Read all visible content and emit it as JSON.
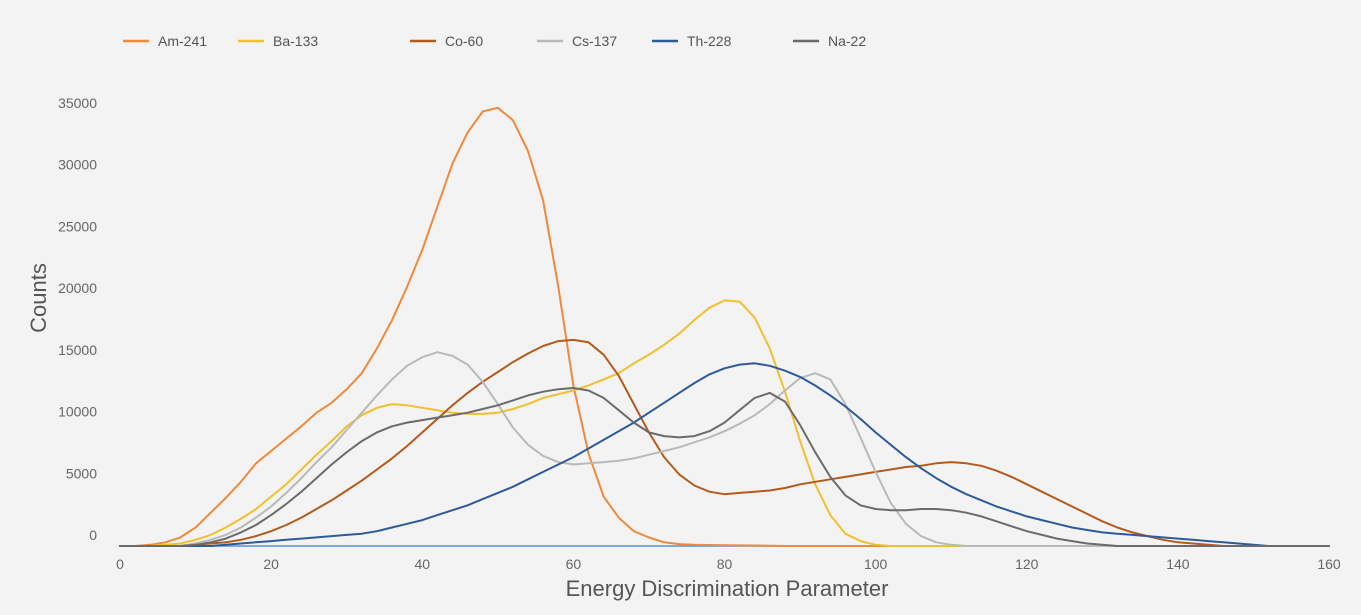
{
  "chart_data": {
    "type": "line",
    "title": "",
    "xlabel": "Energy Discrimination Parameter",
    "ylabel": "Counts",
    "xlim": [
      0,
      160
    ],
    "ylim": [
      0,
      35000
    ],
    "x_ticks": [
      0,
      20,
      40,
      60,
      80,
      100,
      120,
      140,
      160
    ],
    "y_ticks": [
      0,
      5000,
      10000,
      15000,
      20000,
      25000,
      30000,
      35000
    ],
    "grid": false,
    "legend_position": "top-left",
    "x": [
      0,
      2,
      4,
      6,
      8,
      10,
      12,
      14,
      16,
      18,
      20,
      22,
      24,
      26,
      28,
      30,
      32,
      34,
      36,
      38,
      40,
      42,
      44,
      46,
      48,
      50,
      52,
      54,
      56,
      58,
      60,
      62,
      64,
      66,
      68,
      70,
      72,
      74,
      76,
      78,
      80,
      82,
      84,
      86,
      88,
      90,
      92,
      94,
      96,
      98,
      100,
      102,
      104,
      106,
      108,
      110,
      112,
      114,
      116,
      118,
      120,
      122,
      124,
      126,
      128,
      130,
      132,
      134,
      136,
      138,
      140,
      142,
      144,
      146,
      148,
      150,
      152,
      154,
      156,
      158,
      160
    ],
    "series": [
      {
        "name": "Am-241",
        "color": "#ef8a3c",
        "values": [
          0,
          0,
          100,
          300,
          700,
          1500,
          2700,
          3900,
          5200,
          6700,
          7700,
          8700,
          9700,
          10800,
          11600,
          12700,
          14000,
          16000,
          18300,
          21000,
          24000,
          27500,
          31000,
          33500,
          35200,
          35500,
          34500,
          32000,
          28000,
          21000,
          13000,
          7500,
          4000,
          2300,
          1200,
          700,
          300,
          150,
          100,
          80,
          60,
          50,
          40,
          20,
          0,
          0,
          0,
          0,
          0,
          0,
          0,
          0,
          0,
          0,
          0,
          0,
          0,
          0,
          0,
          0,
          0,
          0,
          0,
          0,
          0,
          0,
          0,
          0,
          0,
          0,
          0,
          0,
          0,
          0,
          0,
          0,
          0,
          0,
          0,
          0,
          0
        ]
      },
      {
        "name": "Ba-133",
        "color": "#f2bf2e",
        "values": [
          0,
          0,
          0,
          100,
          200,
          500,
          900,
          1500,
          2200,
          3000,
          4000,
          5000,
          6200,
          7400,
          8500,
          9700,
          10600,
          11200,
          11500,
          11400,
          11200,
          11000,
          10800,
          10700,
          10700,
          10800,
          11100,
          11500,
          12000,
          12300,
          12600,
          13000,
          13500,
          14000,
          14800,
          15500,
          16300,
          17200,
          18300,
          19300,
          19900,
          19800,
          18500,
          16000,
          12500,
          8500,
          5000,
          2500,
          1000,
          400,
          100,
          0,
          0,
          0,
          0,
          0,
          0,
          0,
          0,
          0,
          0,
          0,
          0,
          0,
          0,
          0,
          0,
          0,
          0,
          0,
          0,
          0,
          0,
          0,
          0,
          0,
          0,
          0,
          0,
          0,
          0
        ]
      },
      {
        "name": "Co-60",
        "color": "#b45a1b",
        "values": [
          0,
          0,
          0,
          0,
          0,
          100,
          200,
          300,
          500,
          800,
          1200,
          1700,
          2300,
          3000,
          3700,
          4500,
          5300,
          6200,
          7100,
          8100,
          9200,
          10300,
          11400,
          12400,
          13300,
          14100,
          14900,
          15600,
          16200,
          16600,
          16700,
          16500,
          15500,
          13800,
          11500,
          9200,
          7200,
          5800,
          4900,
          4400,
          4200,
          4300,
          4400,
          4500,
          4700,
          5000,
          5200,
          5400,
          5600,
          5800,
          6000,
          6200,
          6400,
          6500,
          6700,
          6800,
          6700,
          6500,
          6100,
          5600,
          5000,
          4400,
          3800,
          3200,
          2600,
          2000,
          1500,
          1100,
          800,
          500,
          300,
          200,
          100,
          0,
          0,
          0,
          0,
          0,
          0,
          0,
          0
        ]
      },
      {
        "name": "Cs-137",
        "color": "#b9b9b9",
        "values": [
          0,
          0,
          0,
          0,
          0,
          200,
          500,
          900,
          1500,
          2300,
          3200,
          4300,
          5500,
          6800,
          8000,
          9400,
          10800,
          12200,
          13500,
          14600,
          15300,
          15700,
          15400,
          14700,
          13300,
          11500,
          9600,
          8200,
          7300,
          6800,
          6600,
          6700,
          6800,
          6900,
          7100,
          7400,
          7700,
          8000,
          8400,
          8800,
          9300,
          9900,
          10600,
          11500,
          12600,
          13600,
          14000,
          13500,
          11500,
          8800,
          6000,
          3500,
          1800,
          800,
          300,
          100,
          0,
          0,
          0,
          0,
          0,
          0,
          0,
          0,
          0,
          0,
          0,
          0,
          0,
          0,
          0,
          0,
          0,
          0,
          0,
          0,
          0,
          0,
          0,
          0,
          0
        ]
      },
      {
        "name": "Th-228",
        "color": "#2d5b9a",
        "values": [
          0,
          0,
          0,
          0,
          0,
          0,
          0,
          100,
          200,
          300,
          400,
          500,
          600,
          700,
          800,
          900,
          1000,
          1200,
          1500,
          1800,
          2100,
          2500,
          2900,
          3300,
          3800,
          4300,
          4800,
          5400,
          6000,
          6600,
          7200,
          7900,
          8600,
          9300,
          10000,
          10800,
          11600,
          12400,
          13200,
          13900,
          14400,
          14700,
          14800,
          14600,
          14200,
          13700,
          13000,
          12200,
          11300,
          10300,
          9200,
          8200,
          7200,
          6300,
          5500,
          4800,
          4200,
          3700,
          3200,
          2800,
          2400,
          2100,
          1800,
          1500,
          1300,
          1100,
          1000,
          900,
          800,
          700,
          600,
          500,
          400,
          300,
          200,
          100,
          0,
          0,
          0,
          0,
          0
        ]
      },
      {
        "name": "Na-22",
        "color": "#6b6b6b",
        "values": [
          0,
          0,
          0,
          0,
          0,
          100,
          300,
          600,
          1100,
          1700,
          2500,
          3400,
          4400,
          5500,
          6600,
          7600,
          8500,
          9200,
          9700,
          10000,
          10200,
          10400,
          10600,
          10800,
          11100,
          11400,
          11800,
          12200,
          12500,
          12700,
          12800,
          12600,
          12000,
          11000,
          10000,
          9200,
          8900,
          8800,
          8900,
          9300,
          10000,
          11000,
          12000,
          12400,
          11700,
          9800,
          7600,
          5600,
          4100,
          3300,
          3000,
          2900,
          2900,
          3000,
          3000,
          2900,
          2700,
          2400,
          2000,
          1600,
          1200,
          900,
          600,
          400,
          200,
          100,
          0,
          0,
          0,
          0,
          0,
          0,
          0,
          0,
          0,
          0,
          0,
          0,
          0,
          0,
          0
        ]
      }
    ]
  }
}
